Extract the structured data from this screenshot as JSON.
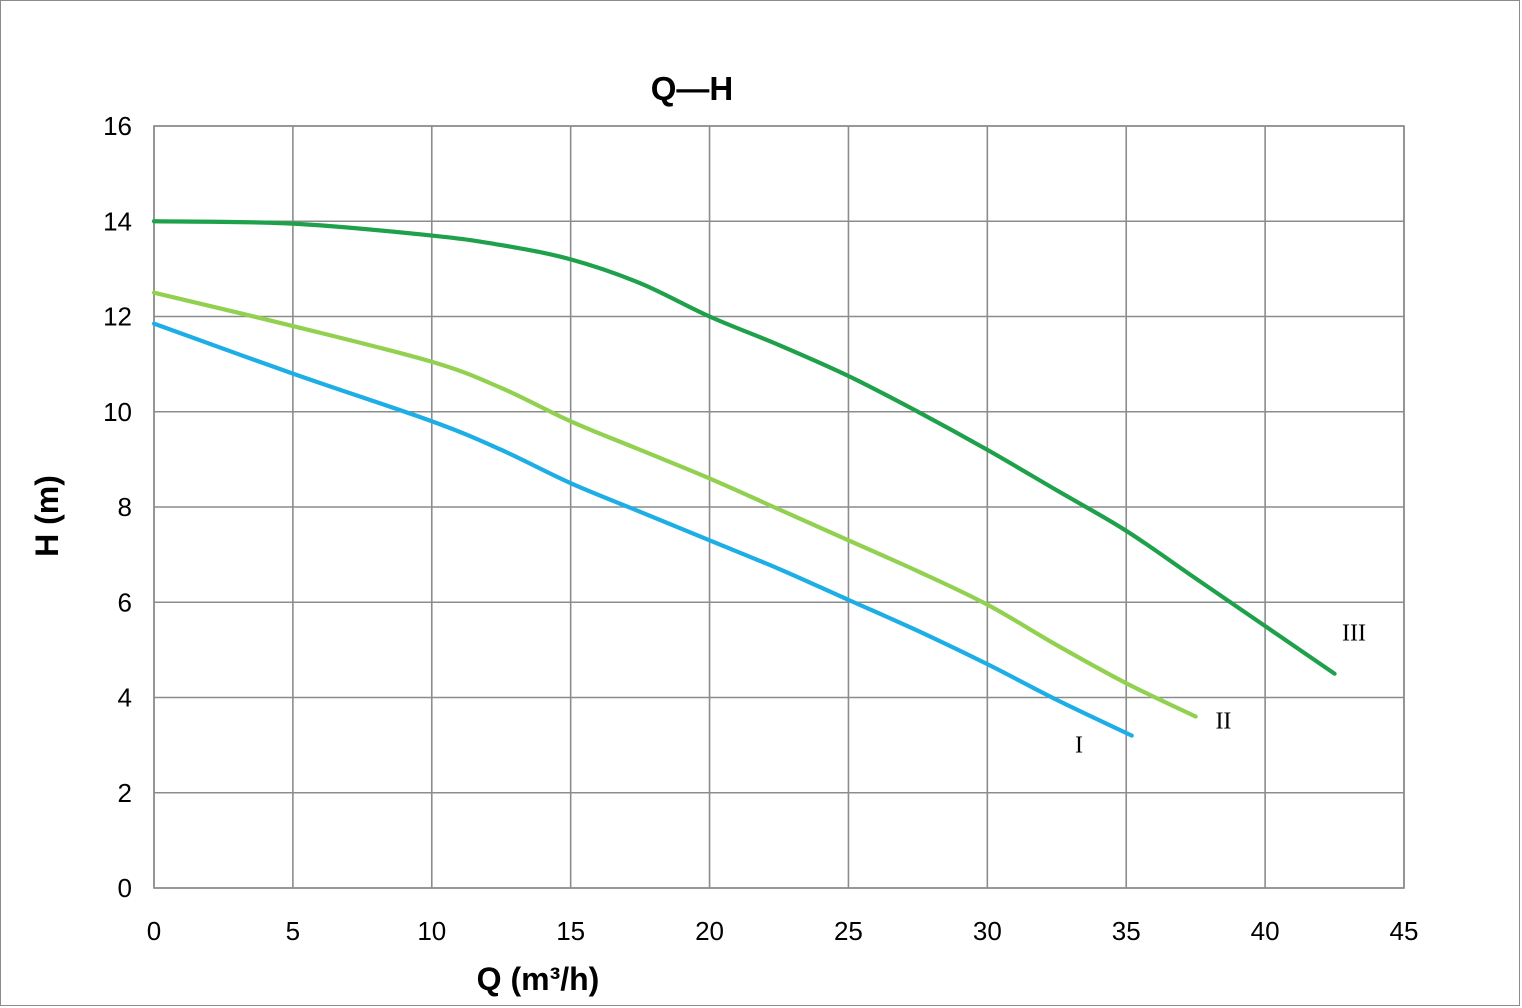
{
  "chart_data": {
    "type": "line",
    "title": "Q—H",
    "xlabel": "Q (m³/h)",
    "ylabel": "H (m)",
    "xlim": [
      0,
      45
    ],
    "ylim": [
      0,
      16
    ],
    "xticks": [
      0,
      5,
      10,
      15,
      20,
      25,
      30,
      35,
      40,
      45
    ],
    "yticks": [
      0,
      2,
      4,
      6,
      8,
      10,
      12,
      14,
      16
    ],
    "grid": true,
    "legend": "none",
    "series": [
      {
        "name": "I",
        "color": "#1eaee6",
        "points": [
          [
            0,
            11.85
          ],
          [
            5,
            10.8
          ],
          [
            10,
            9.8
          ],
          [
            12.5,
            9.2
          ],
          [
            15,
            8.5
          ],
          [
            17.5,
            7.9
          ],
          [
            20,
            7.3
          ],
          [
            22.5,
            6.7
          ],
          [
            25,
            6.05
          ],
          [
            27.5,
            5.4
          ],
          [
            30,
            4.7
          ],
          [
            32.5,
            3.95
          ],
          [
            35.2,
            3.2
          ]
        ]
      },
      {
        "name": "II",
        "color": "#92d050",
        "points": [
          [
            0,
            12.5
          ],
          [
            5,
            11.8
          ],
          [
            10,
            11.05
          ],
          [
            12.5,
            10.5
          ],
          [
            15,
            9.8
          ],
          [
            17.5,
            9.2
          ],
          [
            20,
            8.6
          ],
          [
            22.5,
            7.95
          ],
          [
            25,
            7.3
          ],
          [
            27.5,
            6.65
          ],
          [
            30,
            5.95
          ],
          [
            32.5,
            5.1
          ],
          [
            35,
            4.3
          ],
          [
            37.5,
            3.6
          ]
        ]
      },
      {
        "name": "III",
        "color": "#1fa04a",
        "points": [
          [
            0,
            14.0
          ],
          [
            5,
            13.95
          ],
          [
            10,
            13.7
          ],
          [
            12.5,
            13.5
          ],
          [
            15,
            13.2
          ],
          [
            17.5,
            12.7
          ],
          [
            20,
            12.0
          ],
          [
            22.5,
            11.4
          ],
          [
            25,
            10.75
          ],
          [
            27.5,
            10.0
          ],
          [
            30,
            9.2
          ],
          [
            32.5,
            8.35
          ],
          [
            35,
            7.5
          ],
          [
            37.5,
            6.5
          ],
          [
            40,
            5.5
          ],
          [
            42.5,
            4.5
          ]
        ]
      }
    ],
    "series_labels": [
      {
        "text": "I",
        "x": 33.3,
        "y": 2.85
      },
      {
        "text": "II",
        "x": 38.5,
        "y": 3.35
      },
      {
        "text": "III",
        "x": 43.2,
        "y": 5.2
      }
    ]
  }
}
